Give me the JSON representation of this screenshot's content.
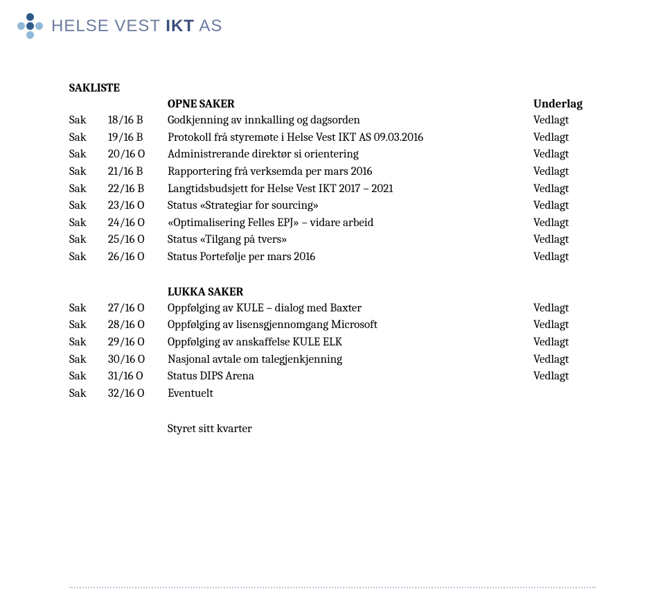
{
  "logo": {
    "text_parts": [
      "HELSE VEST ",
      "IKT",
      " AS"
    ],
    "dot_color_dark": "#2e5a8a",
    "dot_color_light": "#8fb8d9"
  },
  "heading": "SAKLISTE",
  "header": {
    "col_title": "OPNE SAKER",
    "col_under": "Underlag"
  },
  "sak_label": "Sak",
  "opne_saker": [
    {
      "num": "18/16 B",
      "title": "Godkjenning av innkalling og dagsorden",
      "under": "Vedlagt"
    },
    {
      "num": "19/16 B",
      "title": "Protokoll frå styremøte i Helse Vest IKT AS 09.03.2016",
      "under": "Vedlagt"
    },
    {
      "num": "20/16 O",
      "title": "Administrerande direktør si orientering",
      "under": "Vedlagt"
    },
    {
      "num": "21/16 B",
      "title": "Rapportering frå verksemda per mars 2016",
      "under": "Vedlagt"
    },
    {
      "num": "22/16 B",
      "title": "Langtidsbudsjett for Helse Vest IKT 2017 – 2021",
      "under": "Vedlagt"
    },
    {
      "num": "23/16 O",
      "title": "Status «Strategiar for sourcing»",
      "under": "Vedlagt"
    },
    {
      "num": "24/16 O",
      "title": "«Optimalisering Felles EPJ» – vidare arbeid",
      "under": "Vedlagt"
    },
    {
      "num": "25/16 O",
      "title": "Status «Tilgang på tvers»",
      "under": "Vedlagt"
    },
    {
      "num": "26/16 O",
      "title": "Status Portefølje per mars 2016",
      "under": "Vedlagt"
    }
  ],
  "lukka_title": "LUKKA SAKER",
  "lukka_saker": [
    {
      "num": "27/16 O",
      "title": "Oppfølging av KULE – dialog med Baxter",
      "under": "Vedlagt"
    },
    {
      "num": "28/16 O",
      "title": "Oppfølging av lisensgjennomgang Microsoft",
      "under": "Vedlagt"
    },
    {
      "num": "29/16 O",
      "title": "Oppfølging av anskaffelse KULE ELK",
      "under": "Vedlagt"
    },
    {
      "num": "30/16 O",
      "title": "Nasjonal avtale om talegjenkjenning",
      "under": "Vedlagt"
    },
    {
      "num": "31/16 O",
      "title": "Status DIPS Arena",
      "under": "Vedlagt"
    },
    {
      "num": "32/16 O",
      "title": "Eventuelt",
      "under": ""
    }
  ],
  "footer": "Styret sitt kvarter"
}
